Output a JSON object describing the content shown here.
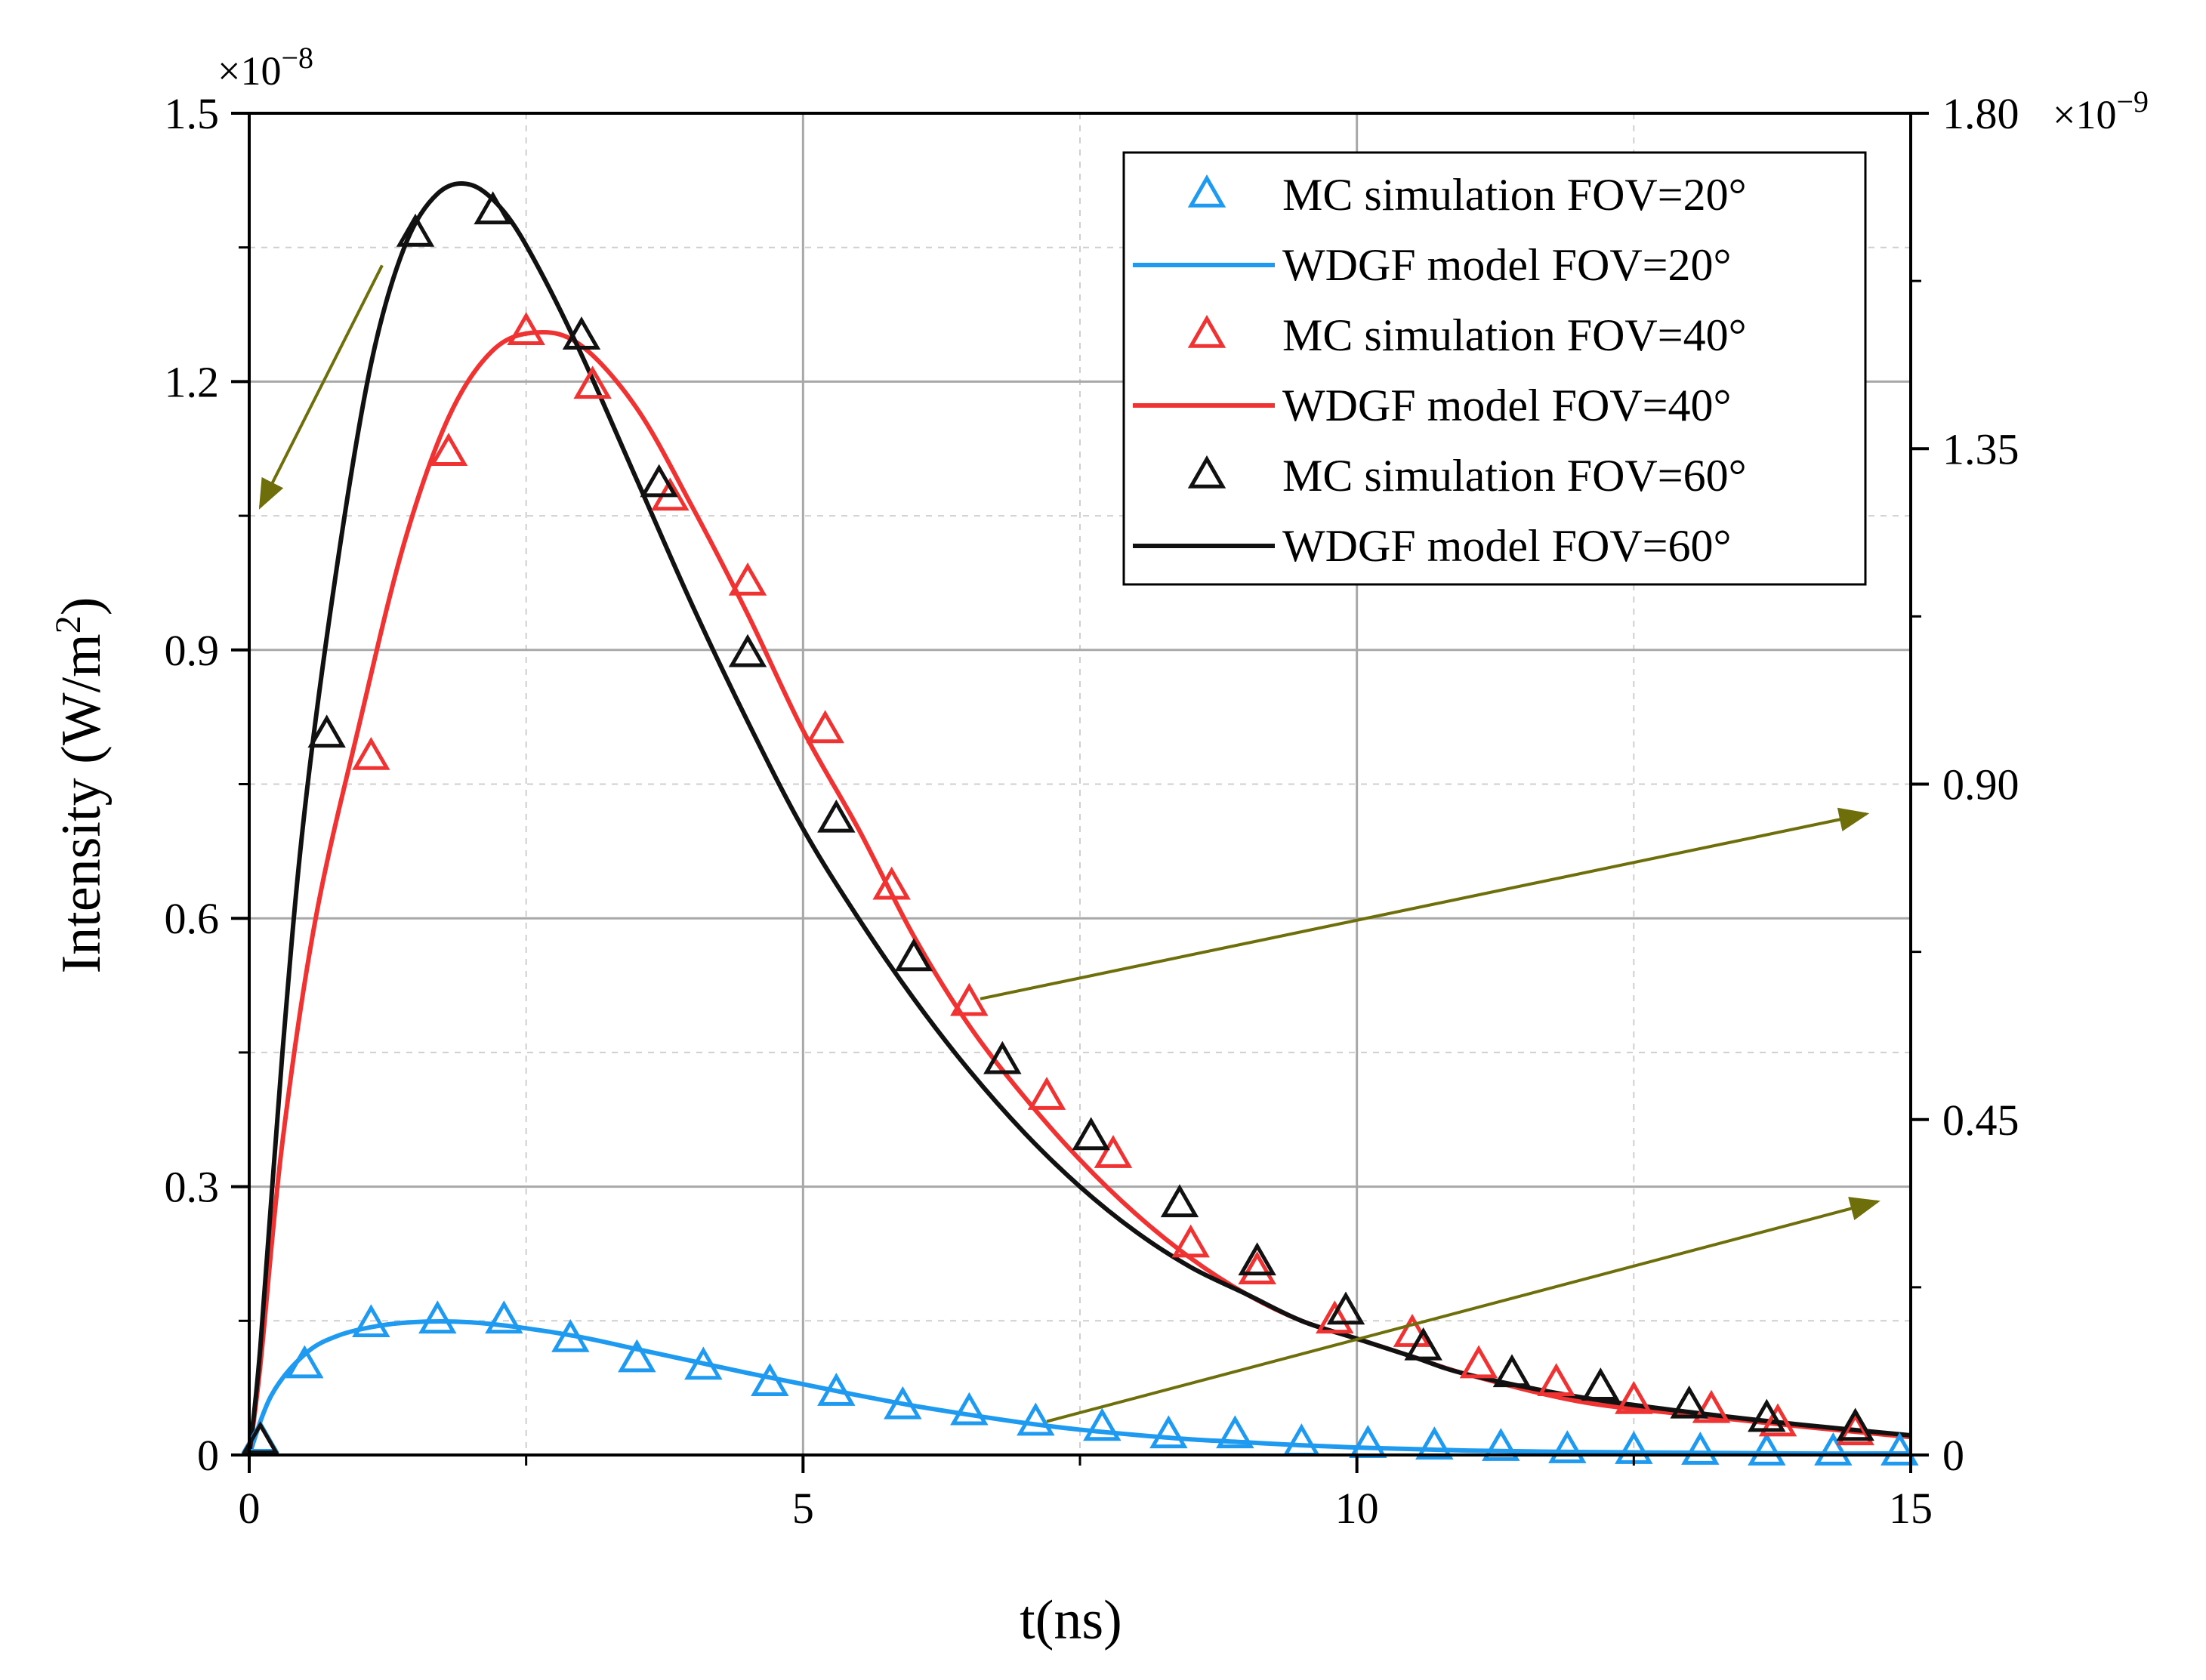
{
  "chart_data": {
    "type": "scatter",
    "xlabel": "t(ns)",
    "ylabel": "Intensity (W/m",
    "ylabel_sup": "2",
    "ylabel_end": ")",
    "xlim": [
      0,
      15
    ],
    "ylim": [
      0,
      1.5
    ],
    "y2lim": [
      0,
      1.8
    ],
    "grid": true,
    "legend_position": "top-right",
    "x_ticks": [
      "0",
      "5",
      "10",
      "15"
    ],
    "y_ticks": [
      "0",
      "0.3",
      "0.6",
      "0.9",
      "1.2",
      "1.5"
    ],
    "y2_ticks": [
      "0",
      "0.45",
      "0.90",
      "1.35",
      "1.80"
    ],
    "y_multiplier": {
      "base": "×10",
      "exp": "−8"
    },
    "y2_multiplier": {
      "base": "×10",
      "exp": "−9"
    },
    "series": [
      {
        "name": "MC simulation FOV=20°",
        "kind": "markers",
        "color": "#1E9AF0",
        "axis": "right",
        "x": [
          0.1,
          0.5,
          1.1,
          1.7,
          2.3,
          2.9,
          3.5,
          4.1,
          4.7,
          5.3,
          5.9,
          6.5,
          7.1,
          7.7,
          8.3,
          8.9,
          9.5,
          10.1,
          10.7,
          11.3,
          11.9,
          12.5,
          13.1,
          13.7,
          14.3,
          14.9
        ],
        "y": [
          0.02,
          0.12,
          0.175,
          0.18,
          0.18,
          0.155,
          0.128,
          0.118,
          0.096,
          0.083,
          0.065,
          0.057,
          0.043,
          0.036,
          0.026,
          0.026,
          0.015,
          0.013,
          0.011,
          0.009,
          0.006,
          0.005,
          0.004,
          0.003,
          0.003,
          0.003
        ]
      },
      {
        "name": "WDGF model FOV=20°",
        "kind": "line",
        "color": "#1E9AF0",
        "axis": "right",
        "x": [
          0,
          0.2,
          0.5,
          0.8,
          1.2,
          1.6,
          2.0,
          2.5,
          3.0,
          3.5,
          4.0,
          4.5,
          5.0,
          5.5,
          6.0,
          6.5,
          7.0,
          7.5,
          8.0,
          8.5,
          9.0,
          9.5,
          10.0,
          10.5,
          11.0,
          12.0,
          13.0,
          14.0,
          15.0
        ],
        "y": [
          0.0,
          0.08,
          0.135,
          0.16,
          0.174,
          0.179,
          0.178,
          0.17,
          0.158,
          0.142,
          0.126,
          0.11,
          0.095,
          0.08,
          0.066,
          0.054,
          0.043,
          0.034,
          0.027,
          0.021,
          0.017,
          0.013,
          0.01,
          0.008,
          0.006,
          0.004,
          0.003,
          0.002,
          0.002
        ]
      },
      {
        "name": "MC simulation FOV=40°",
        "kind": "markers",
        "color": "#F03232",
        "axis": "left",
        "x": [
          0.1,
          1.1,
          1.8,
          2.5,
          3.1,
          3.8,
          4.5,
          5.2,
          5.8,
          6.5,
          7.2,
          7.8,
          8.5,
          9.1,
          9.8,
          10.5,
          11.1,
          11.8,
          12.5,
          13.2,
          13.8,
          14.5
        ],
        "y": [
          0.015,
          0.78,
          1.12,
          1.255,
          1.195,
          1.07,
          0.975,
          0.81,
          0.635,
          0.505,
          0.4,
          0.335,
          0.235,
          0.205,
          0.15,
          0.135,
          0.1,
          0.08,
          0.06,
          0.05,
          0.035,
          0.025
        ]
      },
      {
        "name": "WDGF model FOV=40°",
        "kind": "line",
        "color": "#F03232",
        "axis": "left",
        "x": [
          0,
          0.1,
          0.3,
          0.6,
          1.0,
          1.4,
          1.8,
          2.2,
          2.6,
          3.0,
          3.5,
          4.0,
          4.5,
          5.0,
          5.5,
          6.0,
          6.5,
          7.0,
          7.5,
          8.0,
          8.5,
          9.0,
          9.5,
          10.0,
          10.5,
          11.0,
          12.0,
          13.0,
          14.0,
          15.0
        ],
        "y": [
          0.0,
          0.1,
          0.35,
          0.6,
          0.82,
          1.02,
          1.16,
          1.235,
          1.255,
          1.24,
          1.17,
          1.06,
          0.94,
          0.81,
          0.7,
          0.58,
          0.48,
          0.4,
          0.33,
          0.27,
          0.22,
          0.18,
          0.15,
          0.13,
          0.11,
          0.09,
          0.06,
          0.045,
          0.032,
          0.02
        ]
      },
      {
        "name": "MC simulation FOV=60°",
        "kind": "markers",
        "color": "#111111",
        "axis": "left",
        "x": [
          0.1,
          0.7,
          1.5,
          2.2,
          3.0,
          3.7,
          4.5,
          5.3,
          6.0,
          6.8,
          7.6,
          8.4,
          9.1,
          9.9,
          10.6,
          11.4,
          12.2,
          13.0,
          13.7,
          14.5
        ],
        "y": [
          0.015,
          0.805,
          1.365,
          1.39,
          1.25,
          1.085,
          0.895,
          0.71,
          0.555,
          0.44,
          0.355,
          0.28,
          0.215,
          0.16,
          0.12,
          0.09,
          0.075,
          0.055,
          0.04,
          0.03
        ]
      },
      {
        "name": "WDGF model FOV=60°",
        "kind": "line",
        "color": "#111111",
        "axis": "left",
        "x": [
          0,
          0.1,
          0.3,
          0.5,
          0.8,
          1.1,
          1.4,
          1.7,
          2.0,
          2.3,
          2.6,
          3.0,
          3.5,
          4.0,
          4.5,
          5.0,
          5.5,
          6.0,
          6.5,
          7.0,
          7.5,
          8.0,
          8.5,
          9.0,
          9.5,
          10.0,
          10.5,
          11.0,
          12.0,
          13.0,
          14.0,
          15.0
        ],
        "y": [
          0.0,
          0.12,
          0.45,
          0.72,
          1.0,
          1.22,
          1.35,
          1.41,
          1.42,
          1.39,
          1.33,
          1.23,
          1.09,
          0.95,
          0.82,
          0.7,
          0.6,
          0.51,
          0.43,
          0.36,
          0.3,
          0.25,
          0.21,
          0.18,
          0.15,
          0.13,
          0.11,
          0.09,
          0.065,
          0.048,
          0.034,
          0.022
        ]
      }
    ],
    "annotation_color": "#6E6E0A"
  }
}
